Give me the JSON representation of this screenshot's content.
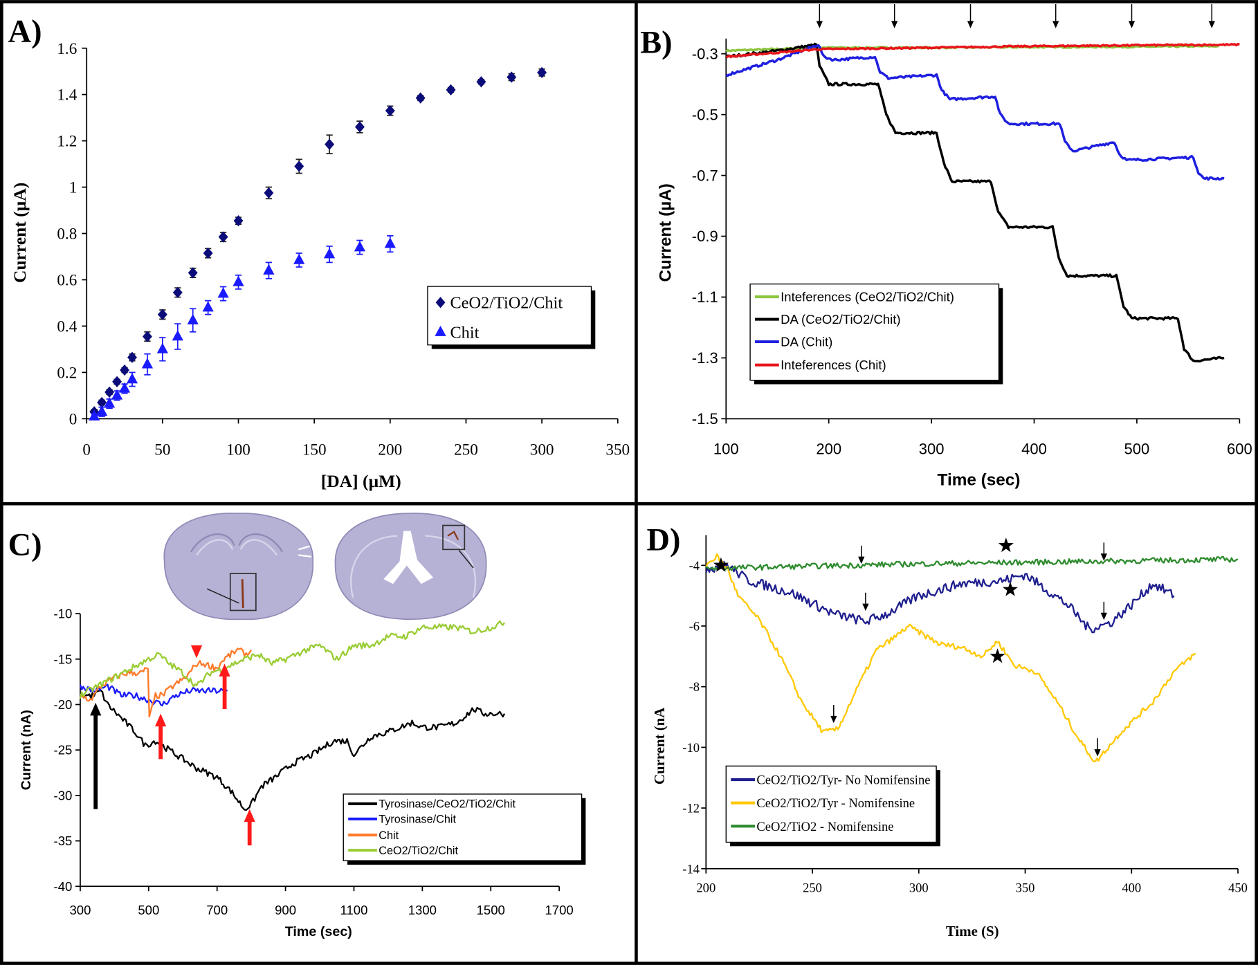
{
  "chart_data": [
    {
      "panel_label": "A)",
      "type": "scatter",
      "xlabel": "[DA] (µM)",
      "ylabel": "Current (µA)",
      "xlim": [
        0,
        350
      ],
      "ylim": [
        0,
        1.6
      ],
      "xticks": [
        "0",
        "50",
        "100",
        "150",
        "200",
        "250",
        "300",
        "350"
      ],
      "yticks": [
        "0",
        "0.2",
        "0.4",
        "0.6",
        "0.8",
        "1",
        "1.2",
        "1.4",
        "1.6"
      ],
      "grid": false,
      "legend_position": "center-right",
      "series": [
        {
          "name": "CeO2/TiO2/Chit",
          "color": "#0b0b7a",
          "marker": "diamond",
          "x": [
            5,
            10,
            15,
            20,
            25,
            30,
            40,
            50,
            60,
            70,
            80,
            90,
            100,
            120,
            140,
            160,
            180,
            200,
            220,
            240,
            260,
            280,
            300
          ],
          "y": [
            0.03,
            0.07,
            0.115,
            0.16,
            0.21,
            0.265,
            0.355,
            0.45,
            0.545,
            0.63,
            0.715,
            0.785,
            0.855,
            0.975,
            1.09,
            1.185,
            1.26,
            1.33,
            1.385,
            1.42,
            1.455,
            1.475,
            1.495
          ],
          "error": [
            0.01,
            0.01,
            0.01,
            0.01,
            0.01,
            0.015,
            0.02,
            0.02,
            0.02,
            0.02,
            0.02,
            0.02,
            0.015,
            0.025,
            0.03,
            0.04,
            0.025,
            0.02,
            0.01,
            0.01,
            0.01,
            0.015,
            0.015
          ]
        },
        {
          "name": "Chit",
          "color": "#1a1aff",
          "marker": "triangle",
          "x": [
            5,
            10,
            15,
            20,
            25,
            30,
            40,
            50,
            60,
            70,
            80,
            90,
            100,
            120,
            140,
            160,
            180,
            200
          ],
          "y": [
            0.01,
            0.03,
            0.065,
            0.1,
            0.13,
            0.17,
            0.235,
            0.3,
            0.355,
            0.425,
            0.48,
            0.54,
            0.59,
            0.64,
            0.685,
            0.71,
            0.74,
            0.755
          ],
          "error": [
            0.01,
            0.02,
            0.02,
            0.02,
            0.02,
            0.03,
            0.045,
            0.05,
            0.055,
            0.05,
            0.03,
            0.03,
            0.03,
            0.035,
            0.03,
            0.035,
            0.03,
            0.035
          ]
        }
      ]
    },
    {
      "panel_label": "B)",
      "type": "line",
      "xlabel": "Time (sec)",
      "ylabel": "Current (µA)",
      "xlim": [
        100,
        600
      ],
      "ylim": [
        -1.5,
        -0.25
      ],
      "xticks": [
        "100",
        "200",
        "300",
        "400",
        "500",
        "600"
      ],
      "yticks": [
        "-0.3",
        "-0.5",
        "-0.7",
        "-0.9",
        "-1.1",
        "-1.3",
        "-1.5"
      ],
      "grid": false,
      "legend_position": "bottom-left",
      "series": [
        {
          "name": "Inteferences (CeO2/TiO2/Chit)",
          "color": "#8dc63f",
          "x": [
            100,
            190,
            300,
            400,
            500,
            580
          ],
          "y": [
            -0.29,
            -0.28,
            -0.28,
            -0.278,
            -0.277,
            -0.275
          ]
        },
        {
          "name": "DA (CeO2/TiO2/Chit)",
          "color": "#000000",
          "x": [
            100,
            150,
            188,
            191,
            200,
            248,
            256,
            265,
            305,
            312,
            320,
            358,
            365,
            375,
            418,
            424,
            432,
            480,
            487,
            495,
            540,
            546,
            555,
            585
          ],
          "y": [
            -0.31,
            -0.29,
            -0.27,
            -0.34,
            -0.4,
            -0.4,
            -0.5,
            -0.56,
            -0.56,
            -0.66,
            -0.72,
            -0.72,
            -0.82,
            -0.87,
            -0.87,
            -0.97,
            -1.03,
            -1.03,
            -1.13,
            -1.17,
            -1.17,
            -1.27,
            -1.31,
            -1.3
          ]
        },
        {
          "name": "DA (Chit)",
          "color": "#1f1fe0",
          "x": [
            100,
            150,
            190,
            195,
            205,
            245,
            250,
            258,
            305,
            310,
            318,
            362,
            367,
            375,
            425,
            430,
            438,
            478,
            483,
            490,
            555,
            560,
            565,
            585
          ],
          "y": [
            -0.37,
            -0.32,
            -0.27,
            -0.31,
            -0.32,
            -0.31,
            -0.36,
            -0.38,
            -0.37,
            -0.42,
            -0.45,
            -0.44,
            -0.5,
            -0.53,
            -0.53,
            -0.59,
            -0.62,
            -0.59,
            -0.63,
            -0.65,
            -0.64,
            -0.69,
            -0.71,
            -0.71
          ]
        },
        {
          "name": "Inteferences (Chit)",
          "color": "#e8141a",
          "x": [
            100,
            190,
            300,
            400,
            500,
            600
          ],
          "y": [
            -0.31,
            -0.285,
            -0.28,
            -0.275,
            -0.272,
            -0.27
          ]
        }
      ],
      "annotations": [
        {
          "type": "arrow",
          "x": 191,
          "y_from": -0.137,
          "y_to": -0.216
        },
        {
          "type": "arrow",
          "x": 264,
          "y_from": -0.137,
          "y_to": -0.216
        },
        {
          "type": "arrow",
          "x": 338,
          "y_from": -0.137,
          "y_to": -0.216
        },
        {
          "type": "arrow",
          "x": 421,
          "y_from": -0.137,
          "y_to": -0.216
        },
        {
          "type": "arrow",
          "x": 495,
          "y_from": -0.137,
          "y_to": -0.216
        },
        {
          "type": "arrow",
          "x": 573,
          "y_from": -0.137,
          "y_to": -0.216
        }
      ]
    },
    {
      "panel_label": "C)",
      "type": "line",
      "xlabel": "Time (sec)",
      "ylabel": "Current (nA)",
      "xlim": [
        300,
        1700
      ],
      "ylim": [
        -40,
        -10
      ],
      "xticks": [
        "300",
        "500",
        "700",
        "900",
        "1100",
        "1300",
        "1500",
        "1700"
      ],
      "yticks": [
        "-10",
        "-15",
        "-20",
        "-25",
        "-30",
        "-35",
        "-40"
      ],
      "grid": false,
      "legend_position": "bottom-right",
      "series": [
        {
          "name": "Tyrosinase/CeO2/TiO2/Chit",
          "color": "#000000",
          "x": [
            300,
            340,
            360,
            380,
            420,
            460,
            490,
            520,
            560,
            600,
            640,
            700,
            740,
            780,
            800,
            830,
            870,
            920,
            980,
            1040,
            1080,
            1100,
            1150,
            1200,
            1270,
            1300,
            1350,
            1400,
            1450,
            1480,
            1540
          ],
          "y": [
            -19,
            -19,
            -18.5,
            -20,
            -21.5,
            -23,
            -24.5,
            -24,
            -25,
            -26,
            -27,
            -28,
            -29.5,
            -31.5,
            -31,
            -29,
            -28,
            -26.5,
            -25.5,
            -24,
            -24,
            -25.5,
            -23.5,
            -23,
            -22,
            -22.5,
            -22.5,
            -22,
            -20.5,
            -21,
            -21
          ]
        },
        {
          "name": "Tyrosinase/Chit",
          "color": "#1a1aff",
          "x": [
            300,
            340,
            380,
            420,
            460,
            500,
            540,
            580,
            620,
            680,
            730
          ],
          "y": [
            -18,
            -18.5,
            -18,
            -19,
            -19,
            -19.5,
            -20,
            -19,
            -18.5,
            -18.5,
            -18.5
          ]
        },
        {
          "name": "Chit",
          "color": "#ff7a2a",
          "x": [
            300,
            330,
            360,
            400,
            440,
            480,
            498,
            502,
            520,
            540,
            570,
            610,
            640,
            660,
            700,
            720,
            760,
            790,
            800
          ],
          "y": [
            -19,
            -19.5,
            -18,
            -17,
            -16.5,
            -16.5,
            -16,
            -21.5,
            -19,
            -19,
            -18,
            -17,
            -15.5,
            -15.5,
            -16,
            -15,
            -14,
            -14.5,
            -14
          ]
        },
        {
          "name": "CeO2/TiO2/Chit",
          "color": "#99cc33",
          "x": [
            300,
            350,
            400,
            450,
            500,
            530,
            560,
            600,
            640,
            680,
            720,
            780,
            820,
            860,
            900,
            960,
            1000,
            1050,
            1100,
            1150,
            1200,
            1250,
            1300,
            1350,
            1400,
            1450,
            1500,
            1540
          ],
          "y": [
            -19,
            -18,
            -17,
            -16,
            -15,
            -14.5,
            -15.5,
            -16.5,
            -18,
            -16.5,
            -16,
            -15,
            -14.5,
            -15.5,
            -15,
            -14,
            -13.5,
            -15,
            -13.5,
            -13.5,
            -12.5,
            -12.5,
            -11.5,
            -11.5,
            -11.5,
            -12,
            -11.5,
            -11
          ]
        }
      ],
      "annotations": [
        {
          "type": "arrow",
          "color": "#000000",
          "x": 345,
          "y_from": -31.5,
          "y_to": -19.8
        },
        {
          "type": "arrow",
          "color": "#ff1a1a",
          "x": 535,
          "y_from": -26,
          "y_to": -21
        },
        {
          "type": "arrow",
          "color": "#ff1a1a",
          "x": 722,
          "y_from": -20.5,
          "y_to": -15.5
        },
        {
          "type": "arrow",
          "color": "#ff1a1a",
          "x": 795,
          "y_from": -35.5,
          "y_to": -31.5
        },
        {
          "type": "arrow",
          "color": "#ff1a1a",
          "x": 640,
          "y_from": -13.8,
          "y_to": -14.9
        }
      ]
    },
    {
      "panel_label": "D)",
      "type": "line",
      "xlabel": "Time (S)",
      "ylabel": "Current (nA",
      "xlim": [
        200,
        450
      ],
      "ylim": [
        -14,
        -3
      ],
      "xticks": [
        "200",
        "250",
        "300",
        "350",
        "400",
        "450"
      ],
      "yticks": [
        "-4",
        "-6",
        "-8",
        "-10",
        "-12",
        "-14"
      ],
      "grid": false,
      "legend_position": "bottom-left",
      "series": [
        {
          "name": "CeO2/TiO2/Tyr- No Nomifensine",
          "color": "#1f1f8f",
          "x": [
            200,
            210,
            220,
            240,
            260,
            275,
            285,
            300,
            320,
            340,
            350,
            360,
            370,
            380,
            390,
            400,
            410,
            420
          ],
          "y": [
            -4.1,
            -4.0,
            -4.5,
            -4.9,
            -5.6,
            -5.85,
            -5.6,
            -5.0,
            -4.6,
            -4.5,
            -4.3,
            -4.8,
            -5.3,
            -6.1,
            -5.9,
            -5.3,
            -4.6,
            -5.0
          ]
        },
        {
          "name": "CeO2/TiO2/Tyr - Nomifensine",
          "color": "#ffc800",
          "x": [
            200,
            205,
            210,
            215,
            225,
            235,
            245,
            255,
            262,
            270,
            280,
            290,
            295,
            310,
            320,
            330,
            337,
            345,
            355,
            365,
            375,
            383,
            395,
            410,
            420,
            430
          ],
          "y": [
            -4.0,
            -3.7,
            -4.1,
            -5.0,
            -5.8,
            -7.0,
            -8.5,
            -9.5,
            -9.4,
            -8.2,
            -6.8,
            -6.3,
            -6.0,
            -6.6,
            -6.7,
            -7.0,
            -6.5,
            -7.3,
            -7.5,
            -8.5,
            -9.7,
            -10.5,
            -9.5,
            -8.5,
            -7.5,
            -6.9
          ]
        },
        {
          "name": "CeO2/TiO2 - Nomifensine",
          "color": "#2e8b2e",
          "x": [
            200,
            300,
            400,
            450
          ],
          "y": [
            -4.1,
            -3.95,
            -3.85,
            -3.8
          ]
        }
      ],
      "annotations": [
        {
          "type": "arrow",
          "x": 273,
          "y_from": -3.35,
          "y_to": -3.95
        },
        {
          "type": "arrow",
          "x": 387,
          "y_from": -3.25,
          "y_to": -3.85
        },
        {
          "type": "arrow",
          "x": 275,
          "y_from": -4.9,
          "y_to": -5.5
        },
        {
          "type": "arrow",
          "x": 387,
          "y_from": -5.2,
          "y_to": -5.8
        },
        {
          "type": "arrow",
          "x": 260,
          "y_from": -8.6,
          "y_to": -9.2
        },
        {
          "type": "arrow",
          "x": 384,
          "y_from": -9.7,
          "y_to": -10.3
        },
        {
          "type": "star",
          "x": 207,
          "y": -4.0
        },
        {
          "type": "star",
          "x": 341,
          "y": -3.35
        },
        {
          "type": "star",
          "x": 343,
          "y": -4.8
        },
        {
          "type": "star",
          "x": 337,
          "y": -7.0
        }
      ]
    }
  ]
}
